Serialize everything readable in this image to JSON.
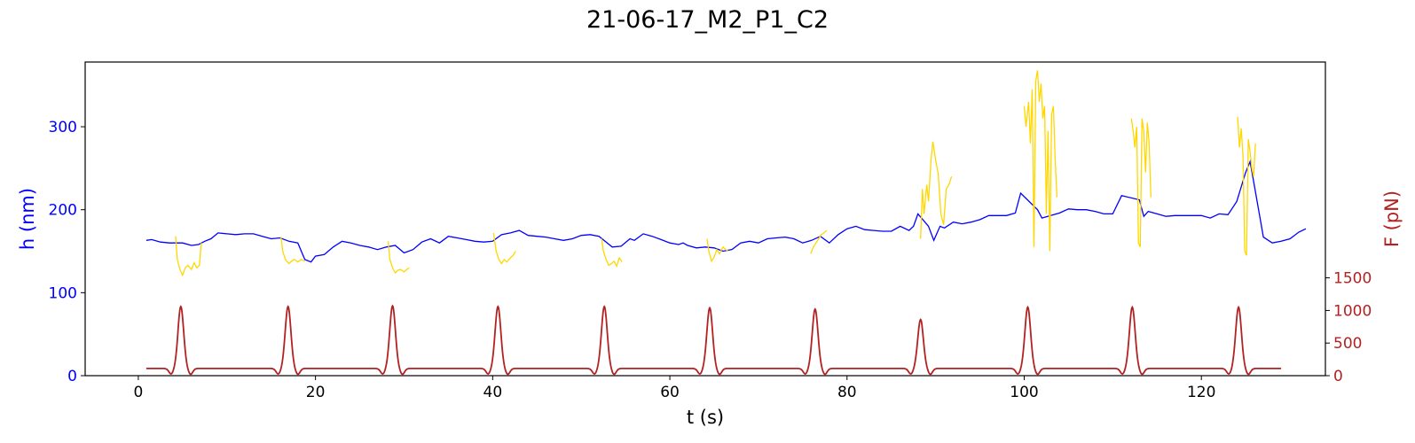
{
  "chart_data": {
    "type": "line",
    "title": "21-06-17_M2_P1_C2",
    "xlabel": "t (s)",
    "ylabel_left": "h (nm)",
    "ylabel_right": "F (pN)",
    "xlim": [
      -6,
      134
    ],
    "ylim_left": [
      0,
      378
    ],
    "ylim_right": [
      0,
      4810
    ],
    "x_ticks": [
      0,
      20,
      40,
      60,
      80,
      100,
      120
    ],
    "y_ticks_left": [
      0,
      100,
      200,
      300
    ],
    "y_ticks_right": [
      0,
      500,
      1000,
      1500
    ],
    "grid": false,
    "colors": {
      "h_baseline": "#0000ff",
      "h_compression": "#ffd700",
      "force": "#b22222",
      "left_axis": "#0000ff",
      "right_axis": "#b22222"
    },
    "series": [
      {
        "axis": "left",
        "color": "#0000ff",
        "points": [
          [
            0.9,
            163
          ],
          [
            1.5,
            164
          ],
          [
            2.5,
            161
          ],
          [
            3.5,
            160
          ],
          [
            4,
            160
          ],
          [
            5,
            160
          ],
          [
            6,
            157
          ],
          [
            6.8,
            158
          ],
          [
            7.5,
            162
          ],
          [
            8.2,
            165
          ],
          [
            9,
            172
          ],
          [
            10,
            171
          ],
          [
            11,
            170
          ],
          [
            12,
            171
          ],
          [
            13,
            171
          ],
          [
            14,
            168
          ],
          [
            15,
            165
          ],
          [
            16,
            166
          ],
          [
            17,
            162
          ],
          [
            18,
            160
          ],
          [
            18.8,
            140
          ],
          [
            19.5,
            137
          ],
          [
            20,
            144
          ],
          [
            21,
            146
          ],
          [
            22,
            155
          ],
          [
            23,
            162
          ],
          [
            24,
            160
          ],
          [
            25,
            157
          ],
          [
            26,
            155
          ],
          [
            27,
            152
          ],
          [
            28,
            155
          ],
          [
            29,
            157
          ],
          [
            30,
            148
          ],
          [
            31,
            152
          ],
          [
            32,
            161
          ],
          [
            33,
            165
          ],
          [
            34,
            160
          ],
          [
            35,
            168
          ],
          [
            36,
            166
          ],
          [
            37,
            164
          ],
          [
            38,
            162
          ],
          [
            39,
            161
          ],
          [
            40,
            162
          ],
          [
            41,
            170
          ],
          [
            42,
            172
          ],
          [
            43,
            175
          ],
          [
            44,
            169
          ],
          [
            45,
            168
          ],
          [
            46,
            167
          ],
          [
            47,
            165
          ],
          [
            48,
            163
          ],
          [
            49,
            165
          ],
          [
            50,
            169
          ],
          [
            51,
            170
          ],
          [
            52,
            168
          ],
          [
            53.5,
            155
          ],
          [
            54.5,
            156
          ],
          [
            55.5,
            165
          ],
          [
            56,
            163
          ],
          [
            57,
            171
          ],
          [
            58,
            168
          ],
          [
            59,
            164
          ],
          [
            60,
            160
          ],
          [
            61,
            158
          ],
          [
            61.5,
            160
          ],
          [
            62,
            157
          ],
          [
            63,
            154
          ],
          [
            64,
            155
          ],
          [
            65,
            154
          ],
          [
            66,
            150
          ],
          [
            67,
            152
          ],
          [
            68,
            160
          ],
          [
            69,
            162
          ],
          [
            70,
            160
          ],
          [
            71,
            165
          ],
          [
            72,
            166
          ],
          [
            73,
            167
          ],
          [
            74,
            165
          ],
          [
            75,
            160
          ],
          [
            76,
            163
          ],
          [
            77,
            168
          ],
          [
            78,
            160
          ],
          [
            79,
            170
          ],
          [
            80,
            177
          ],
          [
            81,
            180
          ],
          [
            82,
            176
          ],
          [
            83,
            175
          ],
          [
            84,
            174
          ],
          [
            85,
            174
          ],
          [
            86,
            180
          ],
          [
            87,
            175
          ],
          [
            87.5,
            180
          ],
          [
            88,
            195
          ],
          [
            89.2,
            180
          ],
          [
            89.8,
            163
          ],
          [
            90.5,
            180
          ],
          [
            91,
            178
          ],
          [
            92,
            185
          ],
          [
            93,
            183
          ],
          [
            94,
            185
          ],
          [
            95,
            188
          ],
          [
            96,
            193
          ],
          [
            97,
            193
          ],
          [
            98,
            193
          ],
          [
            99,
            196
          ],
          [
            99.6,
            220
          ],
          [
            101.5,
            200
          ],
          [
            102,
            190
          ],
          [
            103,
            193
          ],
          [
            104,
            196
          ],
          [
            105,
            201
          ],
          [
            106,
            200
          ],
          [
            107,
            200
          ],
          [
            108,
            198
          ],
          [
            109,
            195
          ],
          [
            110,
            195
          ],
          [
            111,
            217
          ],
          [
            113,
            212
          ],
          [
            113.5,
            192
          ],
          [
            114,
            198
          ],
          [
            115,
            195
          ],
          [
            116,
            192
          ],
          [
            117,
            193
          ],
          [
            118,
            193
          ],
          [
            119,
            193
          ],
          [
            120,
            193
          ],
          [
            121,
            190
          ],
          [
            122,
            195
          ],
          [
            123,
            194
          ],
          [
            124,
            210
          ],
          [
            125,
            245
          ],
          [
            125.5,
            258
          ],
          [
            126,
            228
          ],
          [
            127,
            167
          ],
          [
            128,
            160
          ],
          [
            129,
            162
          ],
          [
            130,
            165
          ],
          [
            131,
            173
          ],
          [
            131.8,
            177
          ]
        ]
      },
      {
        "axis": "left",
        "color": "#ffd700",
        "points": [
          [
            4.2,
            168
          ],
          [
            4.4,
            140
          ],
          [
            4.7,
            128
          ],
          [
            5,
            121
          ],
          [
            5.3,
            130
          ],
          [
            5.6,
            133
          ],
          [
            6,
            128
          ],
          [
            6.3,
            136
          ],
          [
            6.6,
            130
          ],
          [
            6.9,
            133
          ],
          [
            7.1,
            160
          ],
          [
            16.1,
            167
          ],
          [
            16.3,
            150
          ],
          [
            16.6,
            140
          ],
          [
            17,
            135
          ],
          [
            17.3,
            138
          ],
          [
            17.6,
            140
          ],
          [
            18,
            137
          ],
          [
            18.4,
            140
          ],
          [
            18.8,
            138
          ],
          [
            28.2,
            162
          ],
          [
            28.4,
            140
          ],
          [
            28.7,
            130
          ],
          [
            29,
            124
          ],
          [
            29.3,
            127
          ],
          [
            29.6,
            128
          ],
          [
            30,
            125
          ],
          [
            30.3,
            128
          ],
          [
            30.6,
            130
          ],
          [
            40.1,
            172
          ],
          [
            40.4,
            150
          ],
          [
            40.7,
            140
          ],
          [
            41,
            135
          ],
          [
            41.3,
            140
          ],
          [
            41.6,
            137
          ],
          [
            42,
            142
          ],
          [
            42.3,
            145
          ],
          [
            42.6,
            150
          ],
          [
            52.3,
            165
          ],
          [
            52.5,
            150
          ],
          [
            52.8,
            140
          ],
          [
            53.1,
            133
          ],
          [
            53.4,
            135
          ],
          [
            53.7,
            138
          ],
          [
            54,
            132
          ],
          [
            54.3,
            142
          ],
          [
            54.6,
            137
          ],
          [
            64.2,
            165
          ],
          [
            64.4,
            150
          ],
          [
            64.7,
            138
          ],
          [
            65,
            143
          ],
          [
            65.3,
            152
          ],
          [
            65.6,
            147
          ],
          [
            66,
            155
          ],
          [
            66.3,
            152
          ],
          [
            66.6,
            150
          ],
          [
            75.9,
            147
          ],
          [
            76.2,
            155
          ],
          [
            76.5,
            160
          ],
          [
            76.8,
            165
          ],
          [
            77.1,
            170
          ],
          [
            77.4,
            172
          ],
          [
            77.7,
            175
          ],
          [
            88.3,
            165
          ],
          [
            88.5,
            225
          ],
          [
            88.7,
            195
          ],
          [
            89,
            230
          ],
          [
            89.2,
            210
          ],
          [
            89.5,
            262
          ],
          [
            89.7,
            282
          ],
          [
            90,
            260
          ],
          [
            90.3,
            243
          ],
          [
            90.6,
            195
          ],
          [
            90.9,
            182
          ],
          [
            91.2,
            225
          ],
          [
            91.5,
            230
          ],
          [
            91.8,
            240
          ],
          [
            100,
            325
          ],
          [
            100.2,
            300
          ],
          [
            100.5,
            330
          ],
          [
            100.7,
            280
          ],
          [
            100.9,
            345
          ],
          [
            101.1,
            155
          ],
          [
            101.3,
            355
          ],
          [
            101.5,
            368
          ],
          [
            101.7,
            330
          ],
          [
            101.9,
            352
          ],
          [
            102.1,
            310
          ],
          [
            102.3,
            325
          ],
          [
            102.5,
            195
          ],
          [
            102.7,
            295
          ],
          [
            102.9,
            150
          ],
          [
            103.1,
            315
          ],
          [
            103.3,
            325
          ],
          [
            103.5,
            260
          ],
          [
            103.7,
            215
          ],
          [
            112.1,
            310
          ],
          [
            112.3,
            295
          ],
          [
            112.5,
            275
          ],
          [
            112.7,
            300
          ],
          [
            112.9,
            160
          ],
          [
            113.1,
            155
          ],
          [
            113.3,
            310
          ],
          [
            113.5,
            295
          ],
          [
            113.7,
            245
          ],
          [
            113.9,
            305
          ],
          [
            114.1,
            280
          ],
          [
            114.3,
            215
          ],
          [
            124.1,
            312
          ],
          [
            124.3,
            275
          ],
          [
            124.5,
            298
          ],
          [
            124.7,
            265
          ],
          [
            124.9,
            150
          ],
          [
            125.1,
            145
          ],
          [
            125.3,
            285
          ],
          [
            125.5,
            270
          ],
          [
            125.7,
            250
          ],
          [
            125.9,
            240
          ],
          [
            126.1,
            280
          ]
        ]
      },
      {
        "axis": "right",
        "color": "#b22222",
        "peaks": [
          {
            "t": 4.8,
            "F": 1060
          },
          {
            "t": 16.9,
            "F": 1060
          },
          {
            "t": 28.7,
            "F": 1070
          },
          {
            "t": 40.6,
            "F": 1060
          },
          {
            "t": 52.6,
            "F": 1060
          },
          {
            "t": 64.5,
            "F": 1040
          },
          {
            "t": 76.4,
            "F": 1020
          },
          {
            "t": 88.3,
            "F": 860
          },
          {
            "t": 100.4,
            "F": 1050
          },
          {
            "t": 112.2,
            "F": 1050
          },
          {
            "t": 124.2,
            "F": 1050
          }
        ],
        "baseline": 110,
        "t_start": 0.9,
        "t_end": 129
      }
    ]
  }
}
